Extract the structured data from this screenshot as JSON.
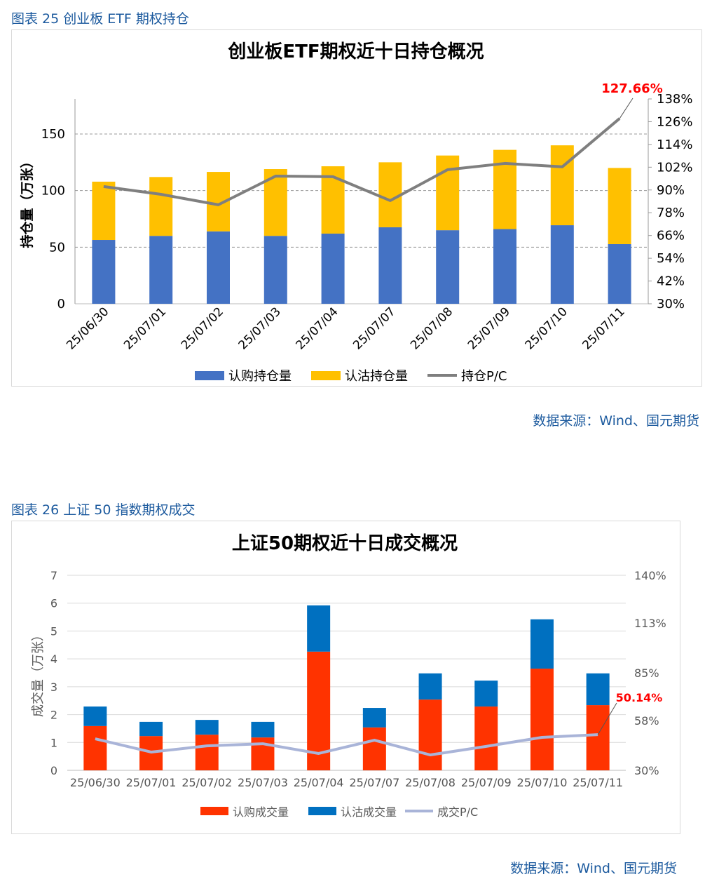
{
  "caption1": "图表 25  创业板 ETF 期权持仓",
  "source1": "数据来源：Wind、国元期货",
  "caption2": "图表 26  上证 50 指数期权成交",
  "source2": "数据来源：Wind、国元期货",
  "chart_data": [
    {
      "type": "bar",
      "stacked": true,
      "title": "创业板ETF期权近十日持仓概况",
      "ylabel": "持仓量（万张）",
      "ylim": [
        0,
        181
      ],
      "yticks": [
        "0",
        "50",
        "100",
        "150"
      ],
      "y2lim": [
        30,
        138
      ],
      "y2ticks": [
        "30%",
        "42%",
        "54%",
        "66%",
        "78%",
        "90%",
        "102%",
        "114%",
        "126%",
        "138%"
      ],
      "grid": "dashed horizontal",
      "legend": "bottom",
      "categories": [
        "25/06/30",
        "25/07/01",
        "25/07/02",
        "25/07/03",
        "25/07/04",
        "25/07/07",
        "25/07/08",
        "25/07/09",
        "25/07/10",
        "25/07/11"
      ],
      "series": [
        {
          "name": "认购持仓量",
          "kind": "bar",
          "color": "#4472c4",
          "values": [
            56.4,
            60.0,
            64.0,
            60.0,
            62.0,
            67.6,
            65.0,
            66.0,
            69.4,
            52.7
          ]
        },
        {
          "name": "认沽持仓量",
          "kind": "bar",
          "color": "#ffc000",
          "values": [
            51.5,
            52.0,
            52.5,
            59.0,
            59.5,
            57.4,
            66.0,
            70.0,
            70.6,
            67.3
          ]
        },
        {
          "name": "持仓P/C",
          "kind": "line",
          "axis": "right",
          "color": "#7f7f7f",
          "values": [
            91.8,
            87.7,
            82.2,
            97.3,
            97.0,
            84.4,
            100.7,
            104.0,
            102.2,
            127.66
          ]
        }
      ],
      "annotation": {
        "text": "127.66%",
        "color": "#ff0000"
      }
    },
    {
      "type": "bar",
      "stacked": true,
      "title": "上证50期权近十日成交概况",
      "ylabel": "成交量（万张）",
      "ylim": [
        0,
        7
      ],
      "yticks": [
        "0",
        "1",
        "2",
        "3",
        "4",
        "5",
        "6",
        "7"
      ],
      "y2lim": [
        30,
        140
      ],
      "y2ticks": [
        "30%",
        "58%",
        "85%",
        "113%",
        "140%"
      ],
      "grid": "solid horizontal",
      "legend": "bottom",
      "categories": [
        "25/06/30",
        "25/07/01",
        "25/07/02",
        "25/07/03",
        "25/07/04",
        "25/07/07",
        "25/07/08",
        "25/07/09",
        "25/07/10",
        "25/07/11"
      ],
      "series": [
        {
          "name": "认购成交量",
          "kind": "bar",
          "color": "#ff3300",
          "values": [
            1.59,
            1.23,
            1.28,
            1.18,
            4.26,
            1.54,
            2.54,
            2.29,
            3.65,
            2.34
          ]
        },
        {
          "name": "认沽成交量",
          "kind": "bar",
          "color": "#0070c0",
          "values": [
            0.7,
            0.51,
            0.53,
            0.56,
            1.66,
            0.7,
            0.94,
            0.93,
            1.77,
            1.14
          ]
        },
        {
          "name": "成交P/C",
          "kind": "line",
          "axis": "right",
          "color": "#a9b4d8",
          "values": [
            47.8,
            40.3,
            43.8,
            45.0,
            39.5,
            47.0,
            38.7,
            43.5,
            48.6,
            50.14
          ]
        }
      ],
      "annotation": {
        "text": "50.14%",
        "color": "#ff0000"
      }
    }
  ]
}
